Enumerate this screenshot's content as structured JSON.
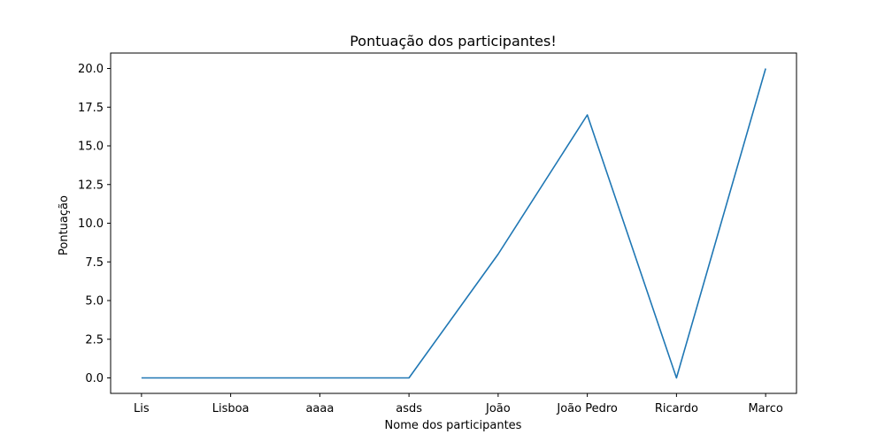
{
  "chart_data": {
    "type": "line",
    "title": "Pontuação dos participantes!",
    "xlabel": "Nome dos participantes",
    "ylabel": "Pontuação",
    "categories": [
      "Lis",
      "Lisboa",
      "aaaa",
      "asds",
      "João",
      "João Pedro",
      "Ricardo",
      "Marco"
    ],
    "series": [
      {
        "values": [
          0,
          0,
          0,
          0,
          8,
          17,
          0,
          20
        ],
        "color": "#1f77b4"
      }
    ],
    "yticks": [
      "0.0",
      "2.5",
      "5.0",
      "7.5",
      "10.0",
      "12.5",
      "15.0",
      "17.5",
      "20.0"
    ],
    "ylim": [
      -1,
      21
    ],
    "grid": false,
    "legend": false
  }
}
